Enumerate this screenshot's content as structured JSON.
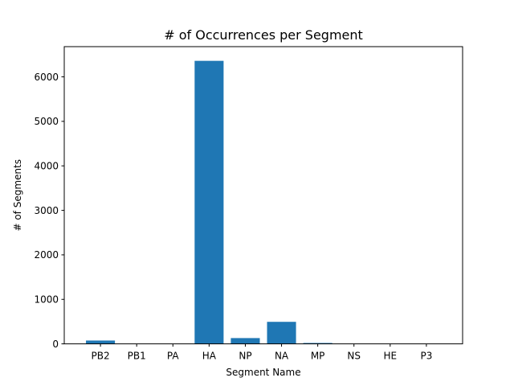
{
  "chart_data": {
    "type": "bar",
    "title": "# of Occurrences per Segment",
    "xlabel": "Segment Name",
    "ylabel": "# of Segments",
    "categories": [
      "PB2",
      "PB1",
      "PA",
      "HA",
      "NP",
      "NA",
      "MP",
      "NS",
      "HE",
      "P3"
    ],
    "values": [
      75,
      0,
      0,
      6360,
      130,
      495,
      20,
      0,
      0,
      0
    ],
    "ylim": [
      0,
      6679
    ],
    "yticks": [
      0,
      1000,
      2000,
      3000,
      4000,
      5000,
      6000
    ],
    "bar_color": "#1f77b4",
    "grid": false,
    "legend": "none"
  }
}
